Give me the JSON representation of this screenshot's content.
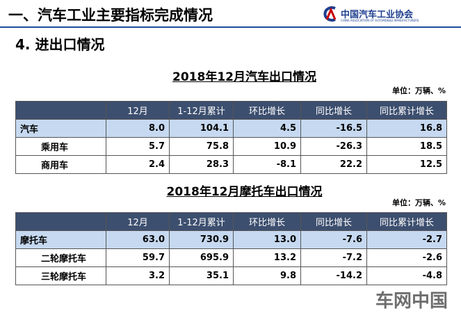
{
  "header": {
    "title": "一、汽车工业主要指标完成情况",
    "logo_name": "中国汽车工业协会",
    "logo_subtitle": "CHINA ASSOCIATION OF AUTOMOBILE MANUFACTURERS"
  },
  "section": "4. 进出口情况",
  "tables": [
    {
      "title": "2018年12月汽车出口情况",
      "unit": "单位：万辆、%",
      "columns": [
        "",
        "12月",
        "1-12月累计",
        "环比增长",
        "同比增长",
        "同比累计增长"
      ],
      "rows": [
        [
          "汽车",
          "8.0",
          "104.1",
          "4.5",
          "-16.5",
          "16.8"
        ],
        [
          "乘用车",
          "5.7",
          "75.8",
          "10.9",
          "-26.3",
          "18.5"
        ],
        [
          "商用车",
          "2.4",
          "28.3",
          "-8.1",
          "22.2",
          "12.5"
        ]
      ]
    },
    {
      "title": "2018年12月摩托车出口情况",
      "unit": "单位：万辆、%",
      "columns": [
        "",
        "12月",
        "1-12月累计",
        "环比增长",
        "同比增长",
        "同比累计增长"
      ],
      "rows": [
        [
          "摩托车",
          "63.0",
          "730.9",
          "13.0",
          "-7.6",
          "-2.7"
        ],
        [
          "二轮摩托车",
          "59.7",
          "695.9",
          "13.2",
          "-7.2",
          "-2.6"
        ],
        [
          "三轮摩托车",
          "3.2",
          "35.1",
          "9.8",
          "-14.2",
          "-4.8"
        ]
      ]
    }
  ],
  "watermark": "车网中国"
}
